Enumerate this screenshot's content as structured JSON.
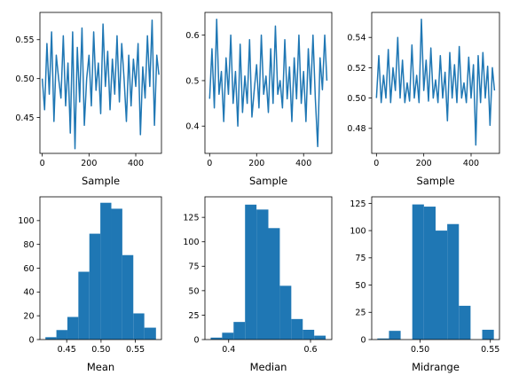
{
  "figure": {
    "background": "#ffffff"
  },
  "chart_data": [
    {
      "type": "line",
      "xlabel": "Sample",
      "ylabel": "",
      "xlim": [
        -10,
        510
      ],
      "ylim": [
        0.404,
        0.585
      ],
      "xticks": [
        0,
        200,
        400
      ],
      "yticks": [
        0.45,
        0.5,
        0.55
      ],
      "ytick_labels": [
        "0.45",
        "0.50",
        "0.55"
      ],
      "color": "#1f77b4",
      "series": [
        {
          "x": [
            0,
            10,
            20,
            30,
            40,
            50,
            60,
            70,
            80,
            90,
            100,
            110,
            120,
            130,
            140,
            150,
            160,
            170,
            180,
            190,
            200,
            210,
            220,
            230,
            240,
            250,
            260,
            270,
            280,
            290,
            300,
            310,
            320,
            330,
            340,
            350,
            360,
            370,
            380,
            390,
            400,
            410,
            420,
            430,
            440,
            450,
            460,
            470,
            480,
            490,
            499
          ],
          "y": [
            0.5,
            0.46,
            0.545,
            0.48,
            0.56,
            0.445,
            0.53,
            0.5,
            0.475,
            0.555,
            0.465,
            0.52,
            0.43,
            0.56,
            0.41,
            0.54,
            0.47,
            0.565,
            0.44,
            0.5,
            0.53,
            0.465,
            0.56,
            0.485,
            0.52,
            0.455,
            0.57,
            0.49,
            0.535,
            0.46,
            0.525,
            0.48,
            0.555,
            0.47,
            0.545,
            0.5,
            0.445,
            0.53,
            0.465,
            0.525,
            0.49,
            0.545,
            0.428,
            0.515,
            0.475,
            0.555,
            0.49,
            0.575,
            0.44,
            0.53,
            0.505
          ]
        }
      ]
    },
    {
      "type": "line",
      "xlabel": "Sample",
      "ylabel": "",
      "xlim": [
        -20,
        520
      ],
      "ylim": [
        0.34,
        0.65
      ],
      "xticks": [
        0,
        200,
        400
      ],
      "yticks": [
        0.4,
        0.5,
        0.6
      ],
      "ytick_labels": [
        "0.4",
        "0.5",
        "0.6"
      ],
      "color": "#1f77b4",
      "series": [
        {
          "x": [
            0,
            10,
            20,
            30,
            40,
            50,
            60,
            70,
            80,
            90,
            100,
            110,
            120,
            130,
            140,
            150,
            160,
            170,
            180,
            190,
            200,
            210,
            220,
            230,
            240,
            250,
            260,
            270,
            280,
            290,
            300,
            310,
            320,
            330,
            340,
            350,
            360,
            370,
            380,
            390,
            400,
            410,
            420,
            430,
            440,
            450,
            460,
            470,
            480,
            490,
            499
          ],
          "y": [
            0.46,
            0.57,
            0.44,
            0.635,
            0.47,
            0.52,
            0.41,
            0.55,
            0.47,
            0.6,
            0.45,
            0.52,
            0.4,
            0.58,
            0.43,
            0.51,
            0.45,
            0.59,
            0.42,
            0.48,
            0.535,
            0.44,
            0.6,
            0.47,
            0.51,
            0.43,
            0.57,
            0.45,
            0.62,
            0.47,
            0.5,
            0.44,
            0.59,
            0.46,
            0.53,
            0.41,
            0.55,
            0.46,
            0.6,
            0.45,
            0.52,
            0.41,
            0.57,
            0.47,
            0.6,
            0.46,
            0.355,
            0.55,
            0.48,
            0.6,
            0.5
          ]
        }
      ]
    },
    {
      "type": "line",
      "xlabel": "Sample",
      "ylabel": "",
      "xlim": [
        -20,
        520
      ],
      "ylim": [
        0.4635,
        0.5565
      ],
      "xticks": [
        0,
        200,
        400
      ],
      "yticks": [
        0.48,
        0.5,
        0.52,
        0.54
      ],
      "ytick_labels": [
        "0.48",
        "0.50",
        "0.52",
        "0.54"
      ],
      "color": "#1f77b4",
      "series": [
        {
          "x": [
            0,
            10,
            20,
            30,
            40,
            50,
            60,
            70,
            80,
            90,
            100,
            110,
            120,
            130,
            140,
            150,
            160,
            170,
            180,
            190,
            200,
            210,
            220,
            230,
            240,
            250,
            260,
            270,
            280,
            290,
            300,
            310,
            320,
            330,
            340,
            350,
            360,
            370,
            380,
            390,
            400,
            410,
            420,
            430,
            440,
            450,
            460,
            470,
            480,
            490,
            499
          ],
          "y": [
            0.5,
            0.528,
            0.497,
            0.515,
            0.5,
            0.532,
            0.497,
            0.52,
            0.505,
            0.54,
            0.5,
            0.525,
            0.497,
            0.51,
            0.498,
            0.535,
            0.5,
            0.515,
            0.497,
            0.552,
            0.505,
            0.525,
            0.498,
            0.533,
            0.5,
            0.512,
            0.497,
            0.528,
            0.5,
            0.517,
            0.485,
            0.53,
            0.5,
            0.522,
            0.497,
            0.534,
            0.5,
            0.51,
            0.497,
            0.527,
            0.5,
            0.522,
            0.469,
            0.528,
            0.497,
            0.53,
            0.5,
            0.521,
            0.482,
            0.52,
            0.505
          ]
        }
      ]
    },
    {
      "type": "bar",
      "subtype": "histogram",
      "xlabel": "Mean",
      "ylabel": "",
      "xlim": [
        0.411,
        0.588
      ],
      "ylim": [
        0,
        120
      ],
      "xticks": [
        0.45,
        0.5,
        0.55
      ],
      "xtick_labels": [
        "0.45",
        "0.50",
        "0.55"
      ],
      "yticks": [
        0,
        20,
        40,
        60,
        80,
        100
      ],
      "bin_edges": [
        0.419,
        0.435,
        0.451,
        0.467,
        0.483,
        0.499,
        0.515,
        0.531,
        0.547,
        0.563,
        0.58
      ],
      "values": [
        2,
        8,
        19,
        57,
        89,
        115,
        110,
        71,
        22,
        10
      ],
      "color": "#1f77b4"
    },
    {
      "type": "bar",
      "subtype": "histogram",
      "xlabel": "Median",
      "ylabel": "",
      "xlim": [
        0.342,
        0.652
      ],
      "ylim": [
        0,
        146
      ],
      "xticks": [
        0.4,
        0.6
      ],
      "xtick_labels": [
        "0.4",
        "0.6"
      ],
      "yticks": [
        0,
        25,
        50,
        75,
        100,
        125
      ],
      "bin_edges": [
        0.356,
        0.384,
        0.412,
        0.44,
        0.468,
        0.497,
        0.525,
        0.553,
        0.581,
        0.609,
        0.637
      ],
      "values": [
        2,
        7,
        18,
        138,
        133,
        114,
        55,
        21,
        10,
        4
      ],
      "color": "#1f77b4"
    },
    {
      "type": "bar",
      "subtype": "histogram",
      "xlabel": "Midrange",
      "ylabel": "",
      "xlim": [
        0.4655,
        0.5565
      ],
      "ylim": [
        0,
        131
      ],
      "xticks": [
        0.5,
        0.55
      ],
      "xtick_labels": [
        "0.50",
        "0.55"
      ],
      "yticks": [
        0,
        25,
        50,
        75,
        100,
        125
      ],
      "bin_edges": [
        0.4695,
        0.4778,
        0.4861,
        0.4944,
        0.5027,
        0.511,
        0.5193,
        0.5276,
        0.5359,
        0.5442,
        0.5525
      ],
      "values": [
        1,
        8,
        0,
        124,
        122,
        100,
        106,
        31,
        0,
        9
      ],
      "color": "#1f77b4"
    }
  ]
}
